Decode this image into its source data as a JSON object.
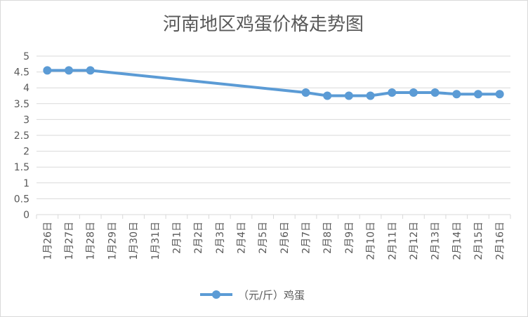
{
  "chart_data": {
    "type": "line",
    "title": "河南地区鸡蛋价格走势图",
    "categories": [
      "1月26日",
      "1月27日",
      "1月28日",
      "1月29日",
      "1月30日",
      "1月31日",
      "2月1日",
      "2月2日",
      "2月3日",
      "2月4日",
      "2月5日",
      "2月6日",
      "2月7日",
      "2月8日",
      "2月9日",
      "2月10日",
      "2月11日",
      "2月12日",
      "2月13日",
      "2月14日",
      "2月15日",
      "2月16日"
    ],
    "y_ticks": [
      "0",
      "0.5",
      "1",
      "1.5",
      "2",
      "2.5",
      "3",
      "3.5",
      "4",
      "4.5",
      "5"
    ],
    "ylim": [
      0,
      5
    ],
    "grid": true,
    "legend_position": "bottom",
    "series": [
      {
        "name": "（元/斤）鸡蛋",
        "color": "#5b9bd5",
        "values": [
          4.55,
          4.55,
          4.55,
          null,
          null,
          null,
          null,
          null,
          null,
          null,
          null,
          null,
          3.85,
          3.75,
          3.75,
          3.75,
          3.85,
          3.85,
          3.85,
          3.8,
          3.8,
          3.8
        ]
      }
    ]
  }
}
